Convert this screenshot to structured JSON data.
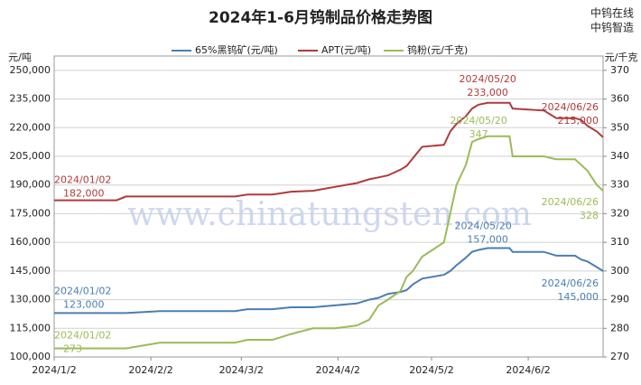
{
  "chart_data": {
    "type": "line",
    "title": "2024年1-6月钨制品价格走势图",
    "y_label": "元/吨",
    "y2_label": "元/千克",
    "watermark": "www.chinatungsten.com",
    "logo": [
      "中钨在线",
      "中钨智造"
    ],
    "x": [
      "2024/1/2",
      "2024/1/22",
      "2024/1/25",
      "2024/2/5",
      "2024/2/29",
      "2024/3/4",
      "2024/3/12",
      "2024/3/18",
      "2024/3/25",
      "2024/4/1",
      "2024/4/8",
      "2024/4/12",
      "2024/4/15",
      "2024/4/18",
      "2024/4/22",
      "2024/4/24",
      "2024/4/26",
      "2024/4/29",
      "2024/5/6",
      "2024/5/8",
      "2024/5/10",
      "2024/5/13",
      "2024/5/15",
      "2024/5/17",
      "2024/5/20",
      "2024/5/27",
      "2024/5/28",
      "2024/6/7",
      "2024/6/11",
      "2024/6/17",
      "2024/6/19",
      "2024/6/21",
      "2024/6/24",
      "2024/6/26"
    ],
    "xlim": [
      "2024/1/2",
      "2024/6/26"
    ],
    "xticks": [
      "2024/1/2",
      "2024/2/2",
      "2024/3/2",
      "2024/4/2",
      "2024/5/2",
      "2024/6/2"
    ],
    "ylim": [
      100000,
      257500
    ],
    "yticks": [
      {
        "value": 100000,
        "label": "100,000"
      },
      {
        "value": 115000,
        "label": "115,000"
      },
      {
        "value": 130000,
        "label": "130,000"
      },
      {
        "value": 145000,
        "label": "145,000"
      },
      {
        "value": 160000,
        "label": "160,000"
      },
      {
        "value": 175000,
        "label": "175,000"
      },
      {
        "value": 190000,
        "label": "190,000"
      },
      {
        "value": 205000,
        "label": "205,000"
      },
      {
        "value": 220000,
        "label": "220,000"
      },
      {
        "value": 235000,
        "label": "235,000"
      },
      {
        "value": 250000,
        "label": "250,000"
      }
    ],
    "y2lim": [
      270,
      375
    ],
    "y2ticks": [
      270,
      280,
      290,
      300,
      310,
      320,
      330,
      340,
      350,
      360,
      370
    ],
    "grid": true,
    "series": [
      {
        "name": "65%黑钨矿(元/吨)",
        "color": "#4a7eb0",
        "values": [
          123000,
          123000,
          123000,
          124000,
          124000,
          125000,
          125000,
          126000,
          126000,
          127000,
          128000,
          130000,
          131000,
          133000,
          134000,
          135000,
          138000,
          141000,
          143000,
          145000,
          148000,
          152000,
          155000,
          156000,
          157000,
          157000,
          155000,
          155000,
          153000,
          153000,
          151000,
          150000,
          147000,
          145000
        ],
        "annotations": [
          {
            "x": "2024/1/2",
            "label": "2024/01/02",
            "value_label": "123,000"
          },
          {
            "x": "2024/5/20",
            "label": "2024/05/20",
            "value_label": "157,000"
          },
          {
            "x": "2024/6/26",
            "label": "2024/06/26",
            "value_label": "145,000"
          }
        ]
      },
      {
        "name": "APT(元/吨)",
        "color": "#b03a3a",
        "values": [
          182000,
          182000,
          184000,
          184000,
          184000,
          185000,
          185000,
          186500,
          187000,
          189000,
          191000,
          193000,
          194000,
          195000,
          198000,
          200000,
          204000,
          210000,
          211000,
          218000,
          222000,
          226000,
          230000,
          232000,
          233000,
          233000,
          230000,
          229000,
          225000,
          225000,
          224000,
          221000,
          218000,
          215000
        ],
        "annotations": [
          {
            "x": "2024/1/2",
            "label": "2024/01/02",
            "value_label": "182,000"
          },
          {
            "x": "2024/5/20",
            "label": "2024/05/20",
            "value_label": "233,000"
          },
          {
            "x": "2024/6/26",
            "label": "2024/06/26",
            "value_label": "215,000"
          }
        ]
      },
      {
        "name": "钨粉(元/千克)",
        "color": "#9bbb59",
        "axis": "y2",
        "values": [
          273,
          273,
          273,
          275,
          275,
          276,
          276,
          278,
          280,
          280,
          281,
          283,
          288,
          290,
          293,
          298,
          300,
          305,
          310,
          320,
          330,
          337,
          345,
          346,
          347,
          347,
          340,
          340,
          339,
          339,
          337,
          335,
          330,
          328
        ],
        "annotations": [
          {
            "x": "2024/1/2",
            "label": "2024/01/02",
            "value_label": "273"
          },
          {
            "x": "2024/5/20",
            "label": "2024/05/20",
            "value_label": "347"
          },
          {
            "x": "2024/6/26",
            "label": "2024/06/26",
            "value_label": "328"
          }
        ]
      }
    ]
  }
}
